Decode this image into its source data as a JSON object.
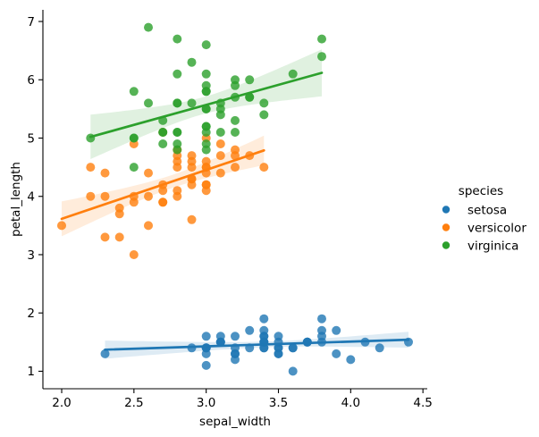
{
  "figure": {
    "background": "#ffffff",
    "spine_color": "#000000",
    "text_color": "#000000"
  },
  "chart_data": {
    "type": "scatter",
    "title": "",
    "xlabel": "sepal_width",
    "ylabel": "petal_length",
    "xlim": [
      1.87,
      4.53
    ],
    "ylim": [
      0.7,
      7.2
    ],
    "xticks": [
      2.0,
      2.5,
      3.0,
      3.5,
      4.0,
      4.5
    ],
    "xtick_labels": [
      "2.0",
      "2.5",
      "3.0",
      "3.5",
      "4.0",
      "4.5"
    ],
    "yticks": [
      1,
      2,
      3,
      4,
      5,
      6,
      7
    ],
    "ytick_labels": [
      "1",
      "2",
      "3",
      "4",
      "5",
      "6",
      "7"
    ],
    "grid": false,
    "legend_position": "right",
    "legend_title": "species",
    "regression": {
      "show_line": true,
      "ci": 95
    },
    "marker": {
      "radius": 5,
      "alpha": 0.8
    },
    "band_alpha": 0.15,
    "line_width": 2.7,
    "series": [
      {
        "name": "setosa",
        "color": "#1f77b4",
        "points": [
          [
            3.5,
            1.4
          ],
          [
            3.0,
            1.4
          ],
          [
            3.2,
            1.3
          ],
          [
            3.1,
            1.5
          ],
          [
            3.6,
            1.4
          ],
          [
            3.9,
            1.7
          ],
          [
            3.4,
            1.4
          ],
          [
            3.4,
            1.5
          ],
          [
            2.9,
            1.4
          ],
          [
            3.1,
            1.5
          ],
          [
            3.7,
            1.5
          ],
          [
            3.4,
            1.6
          ],
          [
            3.0,
            1.4
          ],
          [
            3.0,
            1.1
          ],
          [
            4.0,
            1.2
          ],
          [
            4.4,
            1.5
          ],
          [
            3.9,
            1.3
          ],
          [
            3.5,
            1.4
          ],
          [
            3.8,
            1.7
          ],
          [
            3.8,
            1.5
          ],
          [
            3.4,
            1.7
          ],
          [
            3.7,
            1.5
          ],
          [
            3.6,
            1.0
          ],
          [
            3.3,
            1.7
          ],
          [
            3.4,
            1.9
          ],
          [
            3.0,
            1.6
          ],
          [
            3.4,
            1.6
          ],
          [
            3.5,
            1.5
          ],
          [
            3.4,
            1.4
          ],
          [
            3.2,
            1.6
          ],
          [
            3.1,
            1.6
          ],
          [
            3.4,
            1.5
          ],
          [
            4.1,
            1.5
          ],
          [
            4.2,
            1.4
          ],
          [
            3.1,
            1.5
          ],
          [
            3.2,
            1.2
          ],
          [
            3.5,
            1.3
          ],
          [
            3.6,
            1.4
          ],
          [
            3.0,
            1.3
          ],
          [
            3.4,
            1.5
          ],
          [
            3.5,
            1.3
          ],
          [
            2.3,
            1.3
          ],
          [
            3.2,
            1.3
          ],
          [
            3.5,
            1.6
          ],
          [
            3.8,
            1.9
          ],
          [
            3.0,
            1.4
          ],
          [
            3.8,
            1.6
          ],
          [
            3.2,
            1.4
          ],
          [
            3.7,
            1.5
          ],
          [
            3.3,
            1.4
          ]
        ]
      },
      {
        "name": "versicolor",
        "color": "#ff7f0e",
        "points": [
          [
            3.2,
            4.7
          ],
          [
            3.2,
            4.5
          ],
          [
            3.1,
            4.9
          ],
          [
            2.3,
            4.0
          ],
          [
            2.8,
            4.6
          ],
          [
            2.8,
            4.5
          ],
          [
            3.3,
            4.7
          ],
          [
            2.4,
            3.3
          ],
          [
            2.9,
            4.6
          ],
          [
            2.7,
            3.9
          ],
          [
            2.0,
            3.5
          ],
          [
            3.0,
            4.2
          ],
          [
            2.2,
            4.0
          ],
          [
            2.9,
            4.7
          ],
          [
            2.9,
            3.6
          ],
          [
            3.1,
            4.4
          ],
          [
            3.0,
            4.5
          ],
          [
            2.7,
            4.1
          ],
          [
            2.2,
            4.5
          ],
          [
            2.5,
            3.9
          ],
          [
            3.2,
            4.8
          ],
          [
            2.8,
            4.0
          ],
          [
            2.5,
            4.9
          ],
          [
            2.8,
            4.7
          ],
          [
            2.9,
            4.3
          ],
          [
            3.0,
            4.4
          ],
          [
            2.8,
            4.8
          ],
          [
            3.0,
            5.0
          ],
          [
            2.9,
            4.5
          ],
          [
            2.6,
            3.5
          ],
          [
            2.4,
            3.8
          ],
          [
            2.4,
            3.7
          ],
          [
            2.7,
            3.9
          ],
          [
            2.7,
            5.1
          ],
          [
            3.0,
            4.5
          ],
          [
            3.4,
            4.5
          ],
          [
            3.1,
            4.7
          ],
          [
            2.3,
            4.4
          ],
          [
            3.0,
            4.1
          ],
          [
            2.5,
            4.0
          ],
          [
            2.6,
            4.4
          ],
          [
            3.0,
            4.6
          ],
          [
            2.6,
            4.0
          ],
          [
            2.3,
            3.3
          ],
          [
            2.7,
            4.2
          ],
          [
            3.0,
            4.2
          ],
          [
            2.9,
            4.2
          ],
          [
            2.9,
            4.3
          ],
          [
            2.5,
            3.0
          ],
          [
            2.8,
            4.1
          ]
        ]
      },
      {
        "name": "virginica",
        "color": "#2ca02c",
        "points": [
          [
            3.3,
            6.0
          ],
          [
            2.7,
            5.1
          ],
          [
            3.0,
            5.9
          ],
          [
            2.9,
            5.6
          ],
          [
            3.0,
            5.8
          ],
          [
            3.0,
            6.6
          ],
          [
            2.5,
            4.5
          ],
          [
            2.9,
            6.3
          ],
          [
            2.5,
            5.8
          ],
          [
            3.6,
            6.1
          ],
          [
            3.2,
            5.1
          ],
          [
            2.7,
            5.3
          ],
          [
            3.0,
            5.5
          ],
          [
            2.5,
            5.0
          ],
          [
            2.8,
            5.1
          ],
          [
            3.2,
            5.3
          ],
          [
            3.0,
            5.5
          ],
          [
            3.8,
            6.7
          ],
          [
            2.6,
            6.9
          ],
          [
            2.2,
            5.0
          ],
          [
            3.2,
            5.7
          ],
          [
            2.8,
            4.9
          ],
          [
            2.8,
            6.7
          ],
          [
            2.7,
            4.9
          ],
          [
            3.3,
            5.7
          ],
          [
            3.2,
            6.0
          ],
          [
            2.8,
            4.8
          ],
          [
            3.0,
            4.9
          ],
          [
            2.8,
            5.6
          ],
          [
            3.0,
            5.8
          ],
          [
            2.8,
            6.1
          ],
          [
            3.8,
            6.4
          ],
          [
            2.8,
            5.6
          ],
          [
            2.8,
            5.1
          ],
          [
            2.6,
            5.6
          ],
          [
            3.0,
            6.1
          ],
          [
            3.4,
            5.6
          ],
          [
            3.1,
            5.5
          ],
          [
            3.0,
            4.8
          ],
          [
            3.1,
            5.4
          ],
          [
            3.1,
            5.6
          ],
          [
            3.1,
            5.1
          ],
          [
            2.7,
            5.1
          ],
          [
            3.2,
            5.9
          ],
          [
            3.3,
            5.7
          ],
          [
            3.0,
            5.2
          ],
          [
            2.5,
            5.0
          ],
          [
            3.0,
            5.2
          ],
          [
            3.4,
            5.4
          ],
          [
            3.0,
            5.1
          ]
        ]
      }
    ]
  }
}
